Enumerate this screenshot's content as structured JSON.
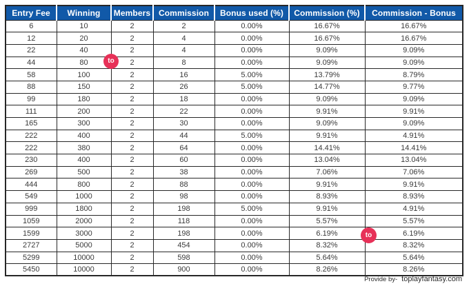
{
  "chart_data": {
    "type": "table",
    "columns": [
      "Entry Fee",
      "Winning",
      "Members",
      "Commission",
      "Bonus used (%)",
      "Commission (%)",
      "Commission - Bonus"
    ],
    "rows": [
      [
        "6",
        "10",
        "2",
        "2",
        "0.00%",
        "16.67%",
        "16.67%"
      ],
      [
        "12",
        "20",
        "2",
        "4",
        "0.00%",
        "16.67%",
        "16.67%"
      ],
      [
        "22",
        "40",
        "2",
        "4",
        "0.00%",
        "9.09%",
        "9.09%"
      ],
      [
        "44",
        "80",
        "2",
        "8",
        "0.00%",
        "9.09%",
        "9.09%"
      ],
      [
        "58",
        "100",
        "2",
        "16",
        "5.00%",
        "13.79%",
        "8.79%"
      ],
      [
        "88",
        "150",
        "2",
        "26",
        "5.00%",
        "14.77%",
        "9.77%"
      ],
      [
        "99",
        "180",
        "2",
        "18",
        "0.00%",
        "9.09%",
        "9.09%"
      ],
      [
        "111",
        "200",
        "2",
        "22",
        "0.00%",
        "9.91%",
        "9.91%"
      ],
      [
        "165",
        "300",
        "2",
        "30",
        "0.00%",
        "9.09%",
        "9.09%"
      ],
      [
        "222",
        "400",
        "2",
        "44",
        "5.00%",
        "9.91%",
        "4.91%"
      ],
      [
        "222",
        "380",
        "2",
        "64",
        "0.00%",
        "14.41%",
        "14.41%"
      ],
      [
        "230",
        "400",
        "2",
        "60",
        "0.00%",
        "13.04%",
        "13.04%"
      ],
      [
        "269",
        "500",
        "2",
        "38",
        "0.00%",
        "7.06%",
        "7.06%"
      ],
      [
        "444",
        "800",
        "2",
        "88",
        "0.00%",
        "9.91%",
        "9.91%"
      ],
      [
        "549",
        "1000",
        "2",
        "98",
        "0.00%",
        "8.93%",
        "8.93%"
      ],
      [
        "999",
        "1800",
        "2",
        "198",
        "5.00%",
        "9.91%",
        "4.91%"
      ],
      [
        "1059",
        "2000",
        "2",
        "118",
        "0.00%",
        "5.57%",
        "5.57%"
      ],
      [
        "1599",
        "3000",
        "2",
        "198",
        "0.00%",
        "6.19%",
        "6.19%"
      ],
      [
        "2727",
        "5000",
        "2",
        "454",
        "0.00%",
        "8.32%",
        "8.32%"
      ],
      [
        "5299",
        "10000",
        "2",
        "598",
        "0.00%",
        "5.64%",
        "5.64%"
      ],
      [
        "5450",
        "10000",
        "2",
        "900",
        "0.00%",
        "8.26%",
        "8.26%"
      ]
    ]
  },
  "watermark": {
    "label": "to"
  },
  "footer": {
    "provided_by": "Provide by-",
    "site": "toplayfantasy.com"
  },
  "colors": {
    "header_bg": "#1159A8",
    "header_text": "#FFFFFF",
    "body_text": "#3A3A3A",
    "border": "#262626",
    "badge": "#E73158"
  }
}
